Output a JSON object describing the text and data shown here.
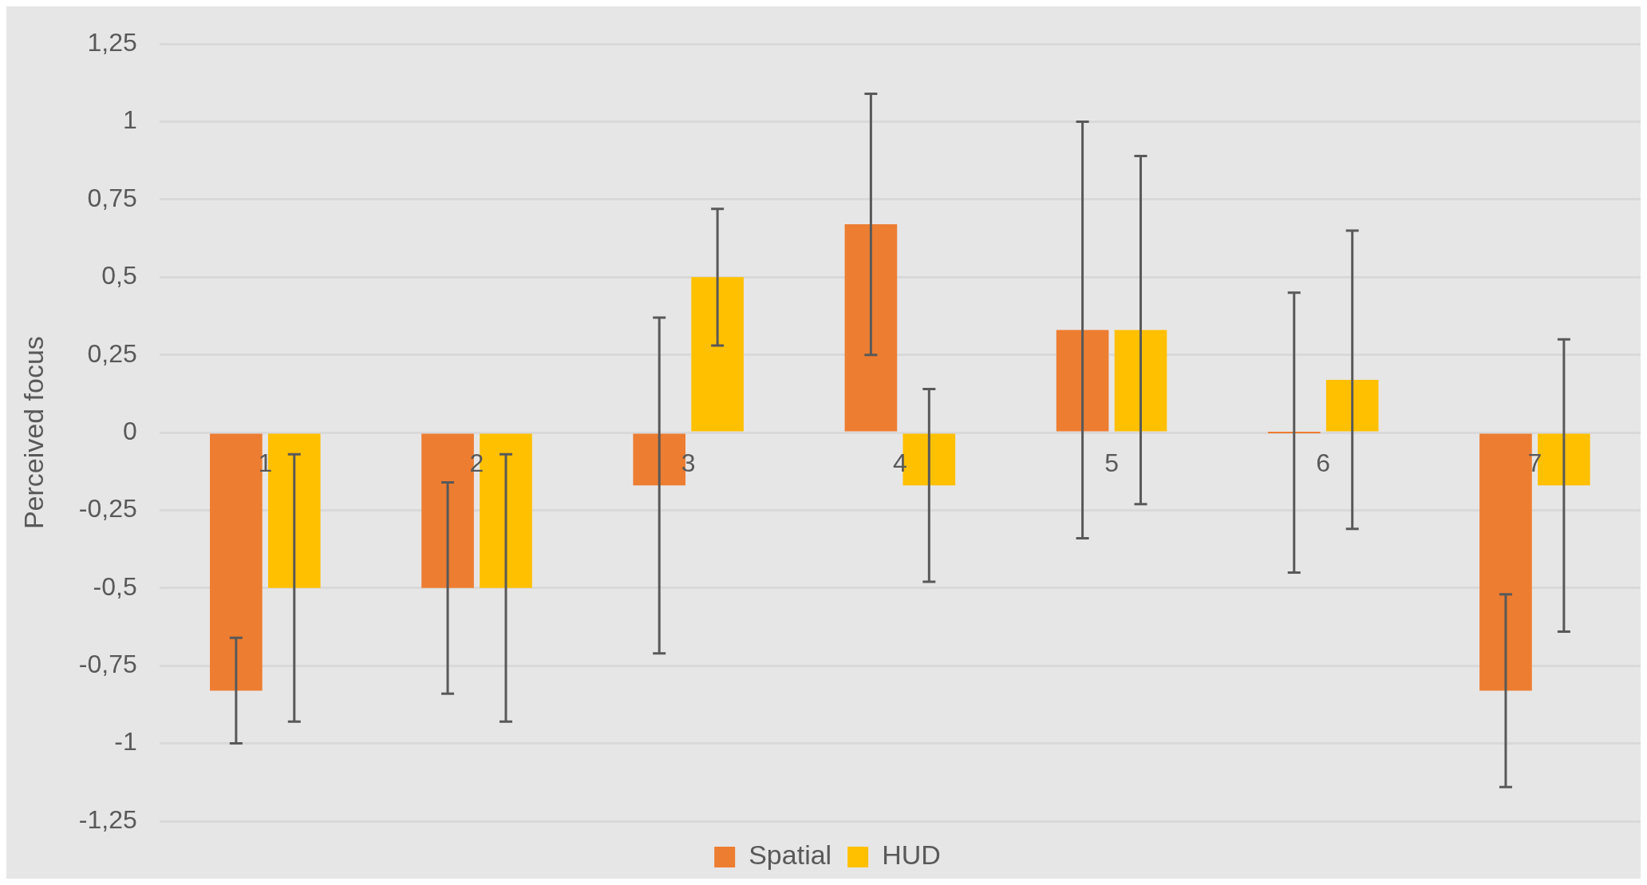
{
  "chart_data": {
    "type": "bar",
    "ylabel": "Perceived focus",
    "categories": [
      "1",
      "2",
      "3",
      "4",
      "5",
      "6",
      "7"
    ],
    "series": [
      {
        "name": "Spatial",
        "color": "#ed7d31",
        "values": [
          -0.83,
          -0.5,
          -0.17,
          0.67,
          0.33,
          0,
          -0.83
        ],
        "errors": [
          0.17,
          0.34,
          0.54,
          0.42,
          0.67,
          0.45,
          0.31
        ]
      },
      {
        "name": "HUD",
        "color": "#ffc000",
        "values": [
          -0.5,
          -0.5,
          0.5,
          -0.17,
          0.33,
          0.17,
          -0.17
        ],
        "errors": [
          0.43,
          0.43,
          0.22,
          0.31,
          0.56,
          0.48,
          0.47
        ]
      }
    ],
    "ylim": [
      -1.25,
      1.25
    ],
    "yticks": [
      {
        "value": -1.25,
        "label": "-1,25"
      },
      -1,
      {
        "value": -0.75,
        "label": "-0,75"
      },
      {
        "value": -0.5,
        "label": "-0,5"
      },
      {
        "value": -0.25,
        "label": "-0,25"
      },
      0,
      {
        "value": 0.25,
        "label": "0,25"
      },
      {
        "value": 0.5,
        "label": "0,5"
      },
      {
        "value": 0.75,
        "label": "0,75"
      },
      1,
      {
        "value": 1.25,
        "label": "1,25"
      }
    ],
    "grid": "y",
    "legend": "bottom"
  }
}
